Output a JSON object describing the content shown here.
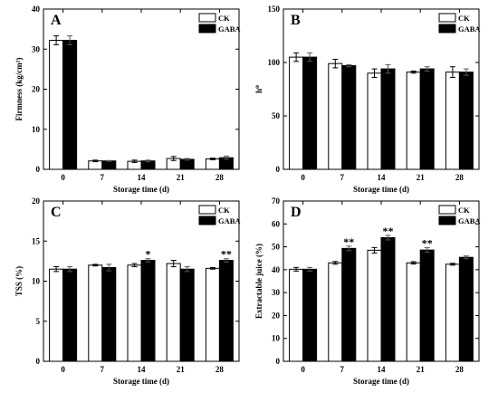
{
  "colors": {
    "ck_fill": "#ffffff",
    "gaba_fill": "#000000",
    "axis": "#000000"
  },
  "chart_data": [
    {
      "type": "bar",
      "panel_letter": "A",
      "categories": [
        "0",
        "7",
        "14",
        "21",
        "28"
      ],
      "xlabel": "Storage time (d)",
      "ylabel": "Firmness (kg/cm²)",
      "ylim": [
        0,
        40
      ],
      "yticks": [
        0,
        10,
        20,
        30,
        40
      ],
      "legend": [
        "CK",
        "GABA"
      ],
      "legend_position": "top-right",
      "grid": false,
      "series": [
        {
          "name": "CK",
          "values": [
            32.2,
            2.1,
            2.0,
            2.7,
            2.6
          ],
          "errors": [
            1.1,
            0.2,
            0.3,
            0.5,
            0.2
          ]
        },
        {
          "name": "GABA",
          "values": [
            32.2,
            2.1,
            2.1,
            2.5,
            2.9
          ],
          "errors": [
            1.1,
            0.1,
            0.2,
            0.2,
            0.4
          ]
        }
      ],
      "annotations": []
    },
    {
      "type": "bar",
      "panel_letter": "B",
      "categories": [
        "0",
        "7",
        "14",
        "21",
        "28"
      ],
      "xlabel": "Storage time (d)",
      "ylabel": "h⁰",
      "ylim": [
        0,
        150
      ],
      "yticks": [
        0,
        50,
        100,
        150
      ],
      "legend": [
        "CK",
        "GABA"
      ],
      "legend_position": "top-right",
      "grid": false,
      "series": [
        {
          "name": "CK",
          "values": [
            105,
            99,
            90,
            91,
            91
          ],
          "errors": [
            4,
            4,
            4,
            1,
            5
          ]
        },
        {
          "name": "GABA",
          "values": [
            105,
            97,
            94,
            94,
            91
          ],
          "errors": [
            4,
            1,
            4,
            2,
            3
          ]
        }
      ],
      "annotations": []
    },
    {
      "type": "bar",
      "panel_letter": "C",
      "categories": [
        "0",
        "7",
        "14",
        "21",
        "28"
      ],
      "xlabel": "Storage time (d)",
      "ylabel": "TSS (%)",
      "ylim": [
        0,
        20
      ],
      "yticks": [
        0,
        5,
        10,
        15,
        20
      ],
      "legend": [
        "CK",
        "GABA"
      ],
      "legend_position": "top-right",
      "grid": false,
      "series": [
        {
          "name": "CK",
          "values": [
            11.5,
            12.0,
            12.0,
            12.2,
            11.6
          ],
          "errors": [
            0.3,
            0.1,
            0.2,
            0.4,
            0.1
          ]
        },
        {
          "name": "GABA",
          "values": [
            11.5,
            11.7,
            12.6,
            11.5,
            12.6
          ],
          "errors": [
            0.3,
            0.4,
            0.2,
            0.3,
            0.2
          ]
        }
      ],
      "annotations": [
        {
          "category": "14",
          "series": "GABA",
          "text": "*"
        },
        {
          "category": "28",
          "series": "GABA",
          "text": "**"
        }
      ]
    },
    {
      "type": "bar",
      "panel_letter": "D",
      "categories": [
        "0",
        "7",
        "14",
        "21",
        "28"
      ],
      "xlabel": "Storage time (d)",
      "ylabel": "Extractable juice (%)",
      "ylim": [
        0,
        70
      ],
      "yticks": [
        0,
        10,
        20,
        30,
        40,
        50,
        60,
        70
      ],
      "legend": [
        "CK",
        "GABA"
      ],
      "legend_position": "top-right",
      "grid": false,
      "series": [
        {
          "name": "CK",
          "values": [
            40.2,
            43.0,
            48.5,
            43.0,
            42.4
          ],
          "errors": [
            0.8,
            0.6,
            1.2,
            0.5,
            0.4
          ]
        },
        {
          "name": "GABA",
          "values": [
            40.2,
            49.3,
            54.0,
            48.6,
            45.4
          ],
          "errors": [
            0.8,
            1.0,
            1.0,
            1.0,
            0.6
          ]
        }
      ],
      "annotations": [
        {
          "category": "7",
          "series": "GABA",
          "text": "**"
        },
        {
          "category": "14",
          "series": "GABA",
          "text": "**"
        },
        {
          "category": "21",
          "series": "GABA",
          "text": "**"
        }
      ]
    }
  ]
}
